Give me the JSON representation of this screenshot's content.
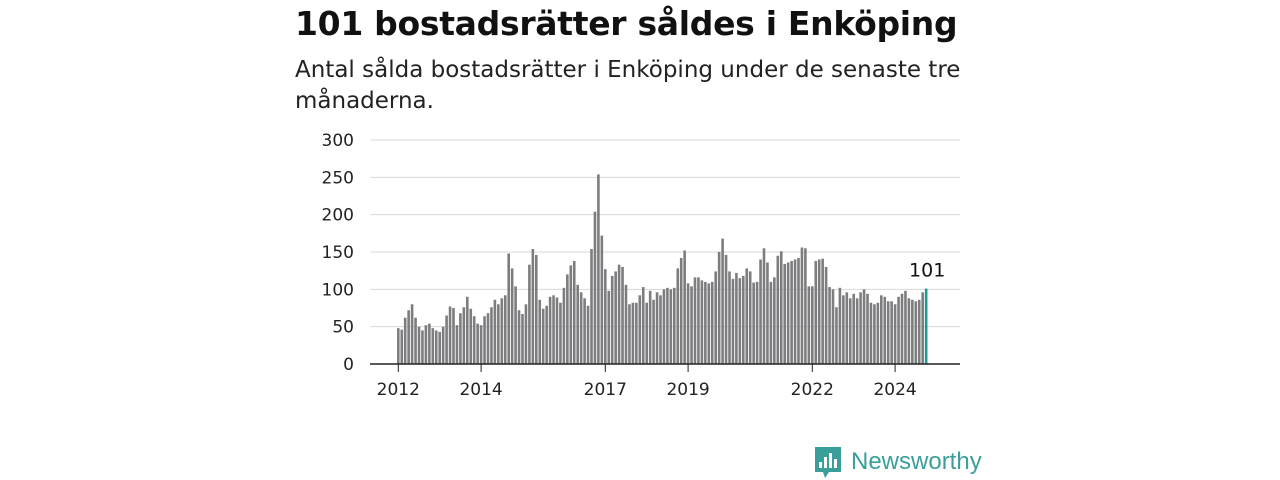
{
  "title": "101 bostadsrätter såldes i Enköping",
  "subtitle": "Antal sålda bostadsrätter i Enköping under de senaste tre månaderna.",
  "brand": "Newsworthy",
  "colors": {
    "bar": "#7d7d80",
    "highlight": "#1a9c8c",
    "grid": "#d9d9d9",
    "axis": "#222222",
    "brand": "#3a9e9a"
  },
  "chart_data": {
    "type": "bar",
    "start": "2012-01",
    "frequency": "monthly",
    "ylim": [
      0,
      300
    ],
    "yticks": [
      0,
      50,
      100,
      150,
      200,
      250,
      300
    ],
    "xticks": [
      "2012",
      "2014",
      "2017",
      "2019",
      "2022",
      "2024"
    ],
    "grid": true,
    "annotation": "101",
    "values": [
      48,
      46,
      62,
      72,
      80,
      62,
      50,
      45,
      52,
      54,
      48,
      45,
      43,
      50,
      65,
      77,
      75,
      52,
      68,
      76,
      90,
      74,
      64,
      54,
      52,
      64,
      68,
      76,
      86,
      80,
      88,
      92,
      148,
      128,
      104,
      72,
      67,
      80,
      133,
      154,
      146,
      86,
      74,
      78,
      90,
      92,
      89,
      82,
      102,
      120,
      132,
      138,
      106,
      96,
      88,
      78,
      154,
      204,
      254,
      172,
      127,
      98,
      118,
      124,
      133,
      130,
      106,
      80,
      82,
      82,
      92,
      103,
      82,
      98,
      86,
      96,
      92,
      100,
      102,
      100,
      102,
      128,
      142,
      152,
      108,
      104,
      116,
      116,
      112,
      110,
      108,
      110,
      124,
      150,
      168,
      146,
      124,
      114,
      122,
      115,
      118,
      128,
      124,
      109,
      110,
      140,
      155,
      136,
      110,
      116,
      145,
      151,
      134,
      136,
      138,
      140,
      142,
      156,
      155,
      104,
      104,
      138,
      140,
      141,
      130,
      103,
      100,
      76,
      102,
      92,
      96,
      88,
      94,
      88,
      96,
      100,
      94,
      82,
      80,
      82,
      92,
      90,
      84,
      84,
      80,
      90,
      94,
      98,
      88,
      86,
      84,
      86,
      96,
      101
    ]
  }
}
